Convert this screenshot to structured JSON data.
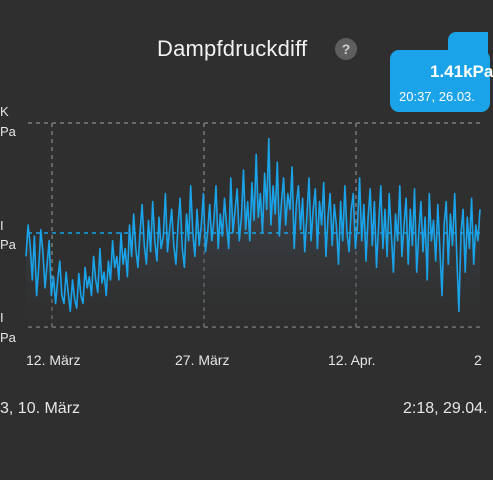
{
  "header": {
    "title": "Dampfdruckdiff",
    "help_icon": "?"
  },
  "tooltip": {
    "value": "1.41kPa",
    "time": "20:37,  26.03."
  },
  "y_labels": [
    "K",
    "Pa",
    "I",
    "Pa",
    "I",
    "Pa"
  ],
  "x_labels": [
    "12. März",
    "27. März",
    "12. Apr.",
    "2"
  ],
  "range": {
    "start": "3,  10. März",
    "end": "2:18,  29.04."
  },
  "colors": {
    "background": "#2f2f2f",
    "line": "#1aa3e8",
    "tooltip": "#1aa3e8"
  },
  "chart_data": {
    "type": "line",
    "title": "Dampfdruckdiff",
    "series": [
      {
        "values": [
          0.85,
          1.05,
          0.92,
          0.7,
          0.98,
          0.6,
          0.78,
          1.02,
          0.88,
          0.65,
          0.8,
          0.95,
          0.6,
          0.72,
          0.55,
          0.7,
          0.82,
          0.6,
          0.55,
          0.75,
          0.62,
          0.5,
          0.7,
          0.58,
          0.52,
          0.74,
          0.6,
          0.55,
          0.78,
          0.65,
          0.72,
          0.6,
          0.85,
          0.7,
          0.62,
          0.9,
          0.68,
          0.75,
          0.6,
          0.82,
          0.7,
          0.95,
          0.78,
          0.85,
          0.7,
          1.0,
          0.8,
          0.9,
          0.72,
          1.05,
          0.85,
          1.12,
          0.9,
          0.78,
          1.0,
          1.18,
          0.92,
          0.8,
          1.08,
          0.88,
          1.2,
          0.95,
          0.82,
          1.1,
          0.9,
          0.98,
          1.25,
          0.88,
          1.02,
          1.15,
          0.92,
          0.8,
          1.05,
          1.22,
          0.9,
          0.78,
          1.12,
          0.95,
          1.3,
          1.0,
          0.85,
          1.15,
          0.92,
          1.05,
          1.25,
          0.88,
          1.0,
          1.18,
          0.95,
          1.08,
          1.3,
          0.9,
          1.12,
          0.98,
          1.22,
          1.05,
          0.9,
          1.35,
          1.0,
          1.15,
          1.28,
          0.95,
          1.1,
          1.4,
          1.02,
          1.2,
          0.95,
          1.32,
          1.08,
          1.5,
          1.1,
          1.25,
          1.0,
          1.38,
          1.15,
          1.6,
          1.05,
          1.3,
          1.12,
          1.45,
          0.98,
          1.2,
          1.35,
          1.05,
          1.25,
          1.15,
          1.42,
          0.9,
          1.18,
          1.3,
          1.02,
          1.22,
          0.88,
          1.1,
          1.35,
          0.95,
          1.15,
          1.28,
          0.9,
          1.2,
          1.05,
          1.32,
          0.85,
          1.1,
          1.25,
          0.92,
          1.18,
          1.05,
          0.8,
          1.2,
          0.95,
          1.3,
          1.0,
          0.88,
          1.15,
          1.25,
          0.9,
          1.05,
          1.35,
          0.95,
          1.18,
          0.82,
          1.1,
          1.28,
          0.92,
          1.2,
          0.78,
          1.05,
          1.3,
          0.9,
          1.15,
          0.85,
          1.25,
          1.0,
          0.75,
          1.12,
          0.95,
          1.3,
          0.85,
          1.05,
          1.22,
          0.8,
          1.15,
          0.92,
          1.28,
          0.75,
          1.0,
          1.2,
          0.88,
          1.1,
          0.7,
          1.25,
          0.95,
          1.08,
          0.82,
          1.18,
          0.9,
          0.6,
          1.05,
          1.2,
          0.8,
          1.12,
          0.92,
          1.25,
          0.85,
          0.5,
          1.0,
          1.15,
          0.75,
          1.1,
          0.9,
          1.22,
          0.8,
          1.05,
          0.95,
          1.15
        ]
      }
    ],
    "ylim": [
      0.4,
      1.7
    ],
    "grid": true
  }
}
